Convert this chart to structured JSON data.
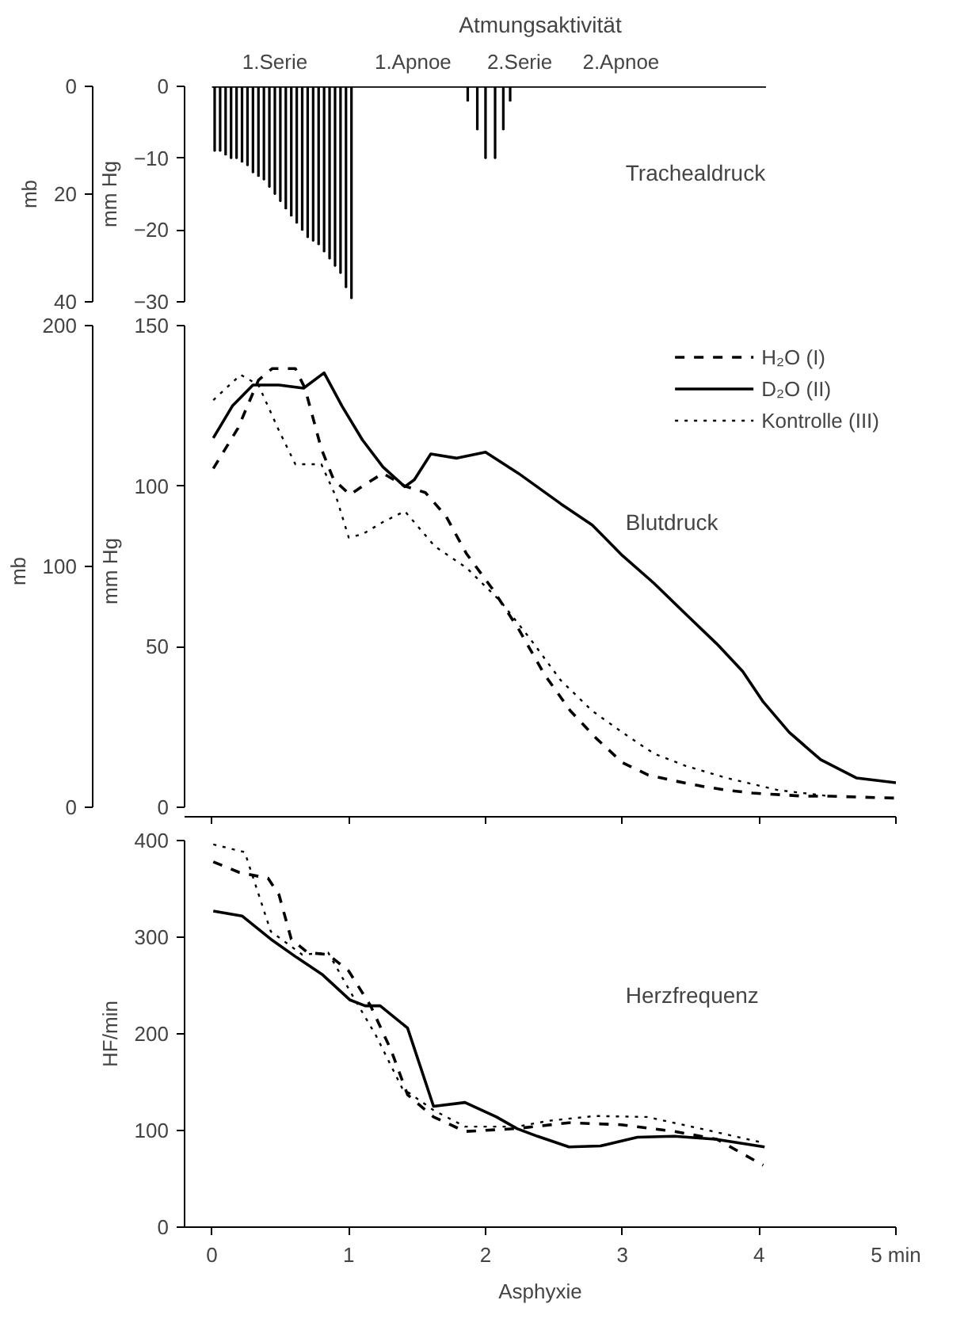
{
  "chart_data": [
    {
      "type": "bar",
      "title": "Trachealdruck",
      "subtitle": "Atmungsaktivität",
      "ylabel": "mm Hg",
      "y2label": "mb",
      "xlim": [
        -0.2,
        5
      ],
      "ylim": [
        -30,
        0
      ],
      "yticks": [
        0,
        -10,
        -20,
        -30
      ],
      "y2lim": [
        40,
        0
      ],
      "y2ticks": [
        0,
        20,
        40
      ],
      "tick_labels": "y",
      "annotations": [
        {
          "text": "1.Serie",
          "x": 0.46,
          "y": 0
        },
        {
          "text": "1.Apnoe",
          "x": 1.47,
          "y": 0
        },
        {
          "text": "2.Serie",
          "x": 2.25,
          "y": 0
        },
        {
          "text": "2.Apnoe",
          "x": 2.99,
          "y": 0
        }
      ],
      "series": [
        {
          "type": "bar",
          "color": "#000000",
          "x": [
            0.02,
            0.06,
            0.1,
            0.14,
            0.18,
            0.22,
            0.26,
            0.3,
            0.34,
            0.38,
            0.42,
            0.46,
            0.5,
            0.54,
            0.58,
            0.62,
            0.66,
            0.7,
            0.74,
            0.78,
            0.82,
            0.86,
            0.9,
            0.94,
            0.98,
            1.02,
            1.87,
            1.94,
            2.0,
            2.07,
            2.13,
            2.18
          ],
          "values": [
            -9,
            -9,
            -9.5,
            -10,
            -10,
            -10.5,
            -11,
            -12,
            -12.5,
            -13,
            -14,
            -15,
            -16,
            -17,
            -18,
            -19,
            -20,
            -21,
            -21.5,
            -22,
            -23,
            -24,
            -25,
            -26,
            -28,
            -29.5,
            -2,
            -6,
            -10,
            -10,
            -6,
            -2
          ]
        },
        {
          "type": "line",
          "color": "#000000",
          "x": [
            0,
            4.05
          ],
          "values": [
            0,
            0
          ]
        }
      ]
    },
    {
      "type": "line",
      "title": "Blutdruck",
      "ylabel": "mm Hg",
      "y2label": "mb",
      "xlim": [
        -0.2,
        5
      ],
      "ylim": [
        -3,
        150
      ],
      "yticks": [
        0,
        50,
        100,
        150
      ],
      "y2lim": [
        -4,
        200
      ],
      "y2ticks": [
        0,
        100,
        200
      ],
      "xticks": [
        0,
        1,
        2,
        3,
        4,
        5
      ],
      "tick_labels": "y",
      "legend": "top right",
      "series": [
        {
          "name": "H₂O (I)",
          "color": "#000000",
          "line_style": "dashed",
          "x": [
            0.01,
            0.19,
            0.34,
            0.44,
            0.61,
            0.68,
            0.8,
            0.89,
            1.01,
            1.1,
            1.25,
            1.41,
            1.56,
            1.71,
            1.86,
            2.05,
            2.24,
            2.43,
            2.62,
            2.81,
            3.0,
            3.19,
            3.38,
            3.57,
            3.76,
            3.95,
            4.33,
            4.52,
            5.0
          ],
          "values": [
            105.5,
            118,
            133,
            136.6,
            136.6,
            130.5,
            111.6,
            102,
            97.3,
            100,
            104,
            100,
            98,
            90.7,
            79,
            68,
            55.6,
            41.4,
            30,
            21.4,
            13.9,
            10,
            8.2,
            6.6,
            5.3,
            4.4,
            3.4,
            3.4,
            2.8
          ]
        },
        {
          "name": "D₂O (II)",
          "color": "#000000",
          "line_style": "solid",
          "x": [
            0.01,
            0.15,
            0.3,
            0.49,
            0.67,
            0.82,
            0.95,
            1.1,
            1.25,
            1.41,
            1.48,
            1.6,
            1.79,
            2.0,
            2.24,
            2.55,
            2.78,
            3.0,
            3.23,
            3.46,
            3.69,
            3.88,
            4.03,
            4.22,
            4.45,
            4.71,
            5.0
          ],
          "values": [
            115,
            125,
            131.5,
            131.5,
            130.5,
            135.3,
            125,
            114.4,
            106,
            99.8,
            102,
            110,
            108.7,
            110.6,
            104,
            94.5,
            87.9,
            78.4,
            69.8,
            60.3,
            50.9,
            42.3,
            32.8,
            23.3,
            14.8,
            9.1,
            7.6
          ]
        },
        {
          "name": "Kontrolle (III)",
          "color": "#000000",
          "line_style": "dotted",
          "x": [
            0.01,
            0.21,
            0.34,
            0.49,
            0.61,
            0.8,
            0.91,
            1.0,
            1.1,
            1.25,
            1.41,
            1.63,
            1.86,
            2.11,
            2.32,
            2.55,
            2.78,
            3.0,
            3.23,
            3.46,
            3.76,
            4.14,
            4.52
          ],
          "values": [
            126.8,
            134.7,
            131.5,
            117.3,
            106.8,
            106.8,
            96.4,
            84,
            85,
            88.8,
            92.2,
            81.2,
            74.6,
            64.1,
            52.8,
            39.5,
            30,
            23.3,
            16.7,
            12.9,
            9.1,
            5.3,
            3.4
          ]
        }
      ]
    },
    {
      "type": "line",
      "title": "Herzfrequenz",
      "ylabel": "HF/min",
      "xlabel": "Asphyxie",
      "xlim": [
        -0.2,
        5
      ],
      "ylim": [
        0,
        400
      ],
      "yticks": [
        0,
        100,
        200,
        300,
        400
      ],
      "xticks": [
        0,
        1,
        2,
        3,
        4,
        {
          "value": 5,
          "label": "5 min"
        }
      ],
      "series": [
        {
          "color": "#000000",
          "line_style": "dashed",
          "x": [
            0.01,
            0.2,
            0.41,
            0.49,
            0.58,
            0.7,
            0.85,
            1.0,
            1.16,
            1.31,
            1.43,
            1.62,
            1.85,
            2.23,
            2.61,
            2.99,
            3.38,
            3.69,
            4.03
          ],
          "values": [
            378,
            367,
            361,
            344,
            298,
            284,
            282,
            265,
            229,
            183,
            137,
            114,
            99,
            102,
            108,
            106,
            99,
            91,
            64
          ]
        },
        {
          "color": "#000000",
          "line_style": "solid",
          "x": [
            0.01,
            0.22,
            0.43,
            0.62,
            0.81,
            1.01,
            1.12,
            1.23,
            1.43,
            1.62,
            1.85,
            2.08,
            2.23,
            2.38,
            2.61,
            2.84,
            3.11,
            3.38,
            3.68,
            4.04
          ],
          "values": [
            327,
            322,
            298,
            279,
            261,
            235,
            229,
            229,
            206,
            125,
            129,
            114,
            102,
            94,
            83,
            84,
            93,
            94,
            91,
            83
          ]
        },
        {
          "color": "#000000",
          "line_style": "dotted",
          "x": [
            0.01,
            0.24,
            0.43,
            0.66,
            0.85,
            1.01,
            1.2,
            1.39,
            1.62,
            1.85,
            2.23,
            2.46,
            2.8,
            3.18,
            3.57,
            4.04
          ],
          "values": [
            396,
            388,
            306,
            282,
            284,
            244,
            198,
            144,
            121,
            104,
            104,
            110,
            115,
            114,
            102,
            87
          ]
        }
      ]
    }
  ]
}
